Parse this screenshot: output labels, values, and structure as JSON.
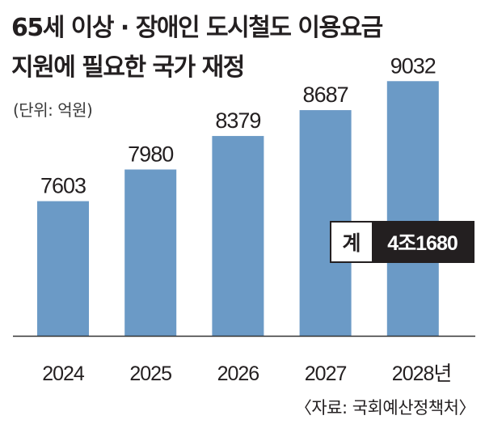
{
  "title_line1": "65세 이상 · 장애인 도시철도 이용요금",
  "title_line2": "지원에 필요한 국가 재정",
  "unit": "(단위: 억원)",
  "total": {
    "label": "계",
    "value": "4조1680"
  },
  "source": "〈자료: 국회예산정책처〉",
  "colors": {
    "bar": "#6b9ac6",
    "axis": "#333333",
    "total_bg": "#231f20"
  },
  "chart_data": {
    "type": "bar",
    "title": "65세 이상 · 장애인 도시철도 이용요금 지원에 필요한 국가 재정",
    "categories": [
      "2024",
      "2025",
      "2026",
      "2027",
      "2028년"
    ],
    "values": [
      7603,
      7980,
      8379,
      8687,
      9032
    ],
    "value_labels": [
      "7603",
      "7980",
      "8379",
      "8687",
      "9032"
    ],
    "unit": "억원",
    "xlabel": "",
    "ylabel": "",
    "grid": false,
    "legend": "none"
  }
}
